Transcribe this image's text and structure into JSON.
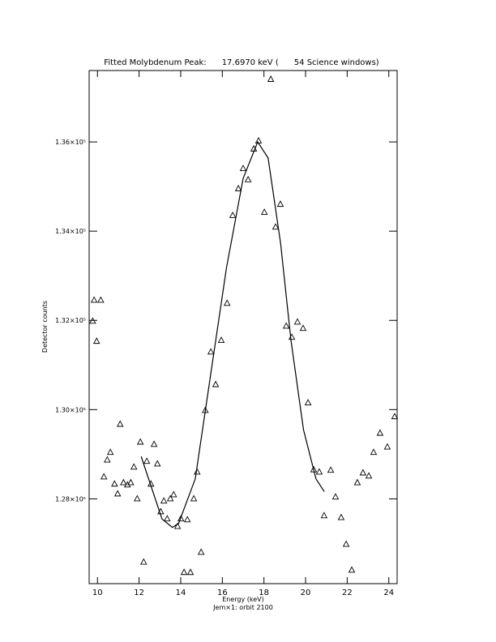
{
  "chart_data": {
    "type": "scatter",
    "title": "Fitted Molybdenum Peak:      17.6970 keV (      54 Science windows)",
    "xlabel": "Energy (keV)",
    "subtitle": "Jem×1: orbit 2100",
    "ylabel": "Detector counts",
    "xlim": [
      9.6,
      24.4
    ],
    "ylim": [
      126100,
      137600
    ],
    "xticks": [
      10,
      12,
      14,
      16,
      18,
      20,
      22,
      24
    ],
    "yticks": [
      {
        "value": 128000,
        "label": "1.28×10⁵"
      },
      {
        "value": 130000,
        "label": "1.30×10⁵"
      },
      {
        "value": 132000,
        "label": "1.32×10⁵"
      },
      {
        "value": 134000,
        "label": "1.34×10⁵"
      },
      {
        "value": 136000,
        "label": "1.36×10⁵"
      }
    ],
    "color": "#000000",
    "series": [
      {
        "marker": "triangle",
        "x": [
          9.77,
          9.84,
          10.16,
          9.96,
          10.31,
          10.47,
          10.62,
          10.82,
          10.97,
          11.09,
          11.25,
          11.44,
          11.6,
          11.75,
          11.91,
          12.06,
          12.22,
          12.37,
          12.57,
          12.72,
          12.88,
          13.04,
          13.19,
          13.35,
          13.5,
          13.66,
          13.85,
          14.01,
          14.16,
          14.32,
          14.47,
          14.63,
          14.79,
          14.98,
          15.18,
          15.45,
          15.68,
          15.95,
          16.23,
          16.5,
          16.77,
          17.0,
          17.24,
          17.51,
          17.74,
          18.02,
          18.33,
          18.56,
          18.79,
          19.07,
          19.34,
          19.61,
          19.88,
          20.12,
          20.39,
          20.66,
          20.89,
          21.21,
          21.44,
          21.71,
          21.95,
          22.22,
          22.49,
          22.76,
          23.04,
          23.27,
          23.58,
          23.93,
          24.28
        ],
        "values": [
          131980,
          132450,
          132450,
          131530,
          128490,
          128870,
          129040,
          128330,
          128110,
          129670,
          128360,
          128310,
          128360,
          128710,
          128000,
          129270,
          126580,
          128840,
          128330,
          129220,
          128780,
          127710,
          127950,
          127550,
          128000,
          128090,
          127380,
          127550,
          126350,
          127530,
          126350,
          128000,
          128600,
          126800,
          129980,
          131290,
          130560,
          131550,
          132380,
          134350,
          134950,
          135400,
          135150,
          135840,
          136020,
          134420,
          137400,
          134090,
          134600,
          131870,
          131620,
          131960,
          131820,
          130150,
          128650,
          128600,
          127620,
          128640,
          128040,
          127580,
          126980,
          126400,
          128360,
          128580,
          128510,
          129040,
          129470,
          129160,
          129840
        ]
      },
      {
        "marker": "line",
        "x": [
          12.1,
          13.1,
          13.6,
          13.9,
          14.7,
          15.45,
          16.2,
          17.0,
          17.7,
          18.2,
          18.8,
          19.3,
          19.9,
          20.5,
          20.9
        ],
        "values": [
          128950,
          127550,
          127360,
          127450,
          128450,
          130820,
          133180,
          135180,
          136000,
          135640,
          133730,
          131550,
          129550,
          128450,
          128160
        ]
      }
    ]
  }
}
